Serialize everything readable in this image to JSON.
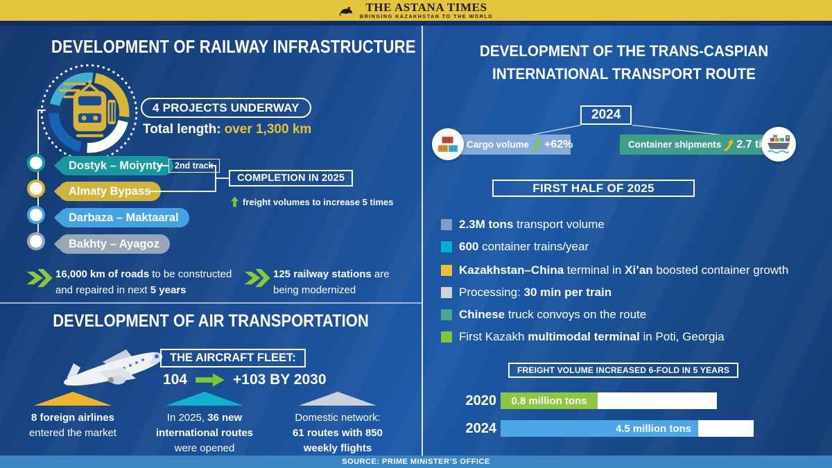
{
  "banner": {
    "title": "THE ASTANA TIMES",
    "tagline": "BRINGING KAZAKHSTAN TO THE WORLD",
    "bg_color": "#e4c33d"
  },
  "source_bar": {
    "text": "SOURCE: PRIME MINISTER’S OFFICE",
    "bg_color": "#3d86c4"
  },
  "railway": {
    "title": "DEVELOPMENT OF RAILWAY INFRASTRUCTURE",
    "badge_label": "4 PROJECTS UNDERWAY",
    "total_length_label": "Total length:",
    "total_length_value": "over 1,300 km",
    "projects": [
      {
        "name": "Dostyk – Moiynty",
        "color": "#17989e",
        "tag": "2nd track"
      },
      {
        "name": "Almaty Bypass",
        "color": "#d2b33c"
      },
      {
        "name": "Darbaza – Maktaaral",
        "color": "#46a3e0"
      },
      {
        "name": "Bakhty – Ayagoz",
        "color": "#98a6b6"
      }
    ],
    "completion_label": "COMPLETION IN 2025",
    "completion_note": "freight volumes to increase 5 times",
    "facts": [
      {
        "parts": [
          {
            "t": "16,000 km of roads",
            "b": true
          },
          {
            "t": " to be constructed and repaired in next ",
            "b": false
          },
          {
            "t": "5 years",
            "b": true
          }
        ]
      },
      {
        "parts": [
          {
            "t": "125 railway stations",
            "b": true
          },
          {
            "t": " are being modernized",
            "b": false
          }
        ]
      }
    ],
    "accent_green": "#8dc63f"
  },
  "air": {
    "title": "DEVELOPMENT OF AIR TRANSPORTATION",
    "fleet_label": "THE AIRCRAFT FLEET:",
    "fleet_current": "104",
    "fleet_future": "+103 BY 2030",
    "stats": [
      {
        "color": "#f0b42c",
        "parts": [
          {
            "t": "8 foreign airlines",
            "b": true
          },
          {
            "t": "\nentered the market",
            "b": false
          }
        ]
      },
      {
        "color": "#12b0d0",
        "parts": [
          {
            "t": "In 2025, ",
            "b": false
          },
          {
            "t": "36 new international routes",
            "b": true
          },
          {
            "t": " were opened",
            "b": false
          }
        ]
      },
      {
        "color": "#ccd2d8",
        "parts": [
          {
            "t": "Domestic network:",
            "b": false
          },
          {
            "t": "\n",
            "b": false
          },
          {
            "t": "61 routes with 850 weekly flights",
            "b": true
          }
        ]
      }
    ]
  },
  "transcaspian": {
    "title_line1": "DEVELOPMENT OF THE TRANS-CASPIAN",
    "title_line2": "INTERNATIONAL TRANSPORT ROUTE",
    "year": "2024",
    "stats": [
      {
        "label": "Cargo volume",
        "value": "+62%",
        "bar_color": "#85abd8",
        "arrow_color": "#7ec832",
        "icon": "containers-icon"
      },
      {
        "label": "Container shipments",
        "value": "2.7 times",
        "bar_color": "#3f9e88",
        "arrow_color": "#f0b42c",
        "icon": "cargo-ship-icon"
      }
    ],
    "half_title": "FIRST HALF OF 2025",
    "bullets": [
      {
        "color": "#7f9fc8",
        "parts": [
          {
            "t": "2.3M tons",
            "b": true
          },
          {
            "t": " transport volume",
            "b": false
          }
        ]
      },
      {
        "color": "#02b2cc",
        "parts": [
          {
            "t": "600",
            "b": true
          },
          {
            "t": " container trains/year",
            "b": false
          }
        ]
      },
      {
        "color": "#f2bc35",
        "parts": [
          {
            "t": "Kazakhstan–China",
            "b": true
          },
          {
            "t": " terminal in ",
            "b": false
          },
          {
            "t": "Xi’an",
            "b": true
          },
          {
            "t": " boosted container growth",
            "b": false
          }
        ]
      },
      {
        "color": "#ced3d7",
        "parts": [
          {
            "t": "Processing: ",
            "b": false
          },
          {
            "t": "30 min per train",
            "b": true
          }
        ]
      },
      {
        "color": "#48a98b",
        "parts": [
          {
            "t": "Chinese",
            "b": true
          },
          {
            "t": " truck convoys on the route",
            "b": false
          }
        ]
      },
      {
        "color": "#7ec83c",
        "parts": [
          {
            "t": "First Kazakh ",
            "b": false
          },
          {
            "t": "multimodal terminal",
            "b": true
          },
          {
            "t": " in Poti, Georgia",
            "b": false
          }
        ]
      }
    ],
    "chart_title": "FREIGHT VOLUME INCREASED 6-FOLD IN 5 YEARS"
  },
  "chart_data": {
    "type": "bar",
    "orientation": "horizontal",
    "title": "FREIGHT VOLUME INCREASED 6-FOLD IN 5 YEARS",
    "categories": [
      "2020",
      "2024"
    ],
    "values": [
      0.8,
      4.5
    ],
    "unit": "million tons",
    "bar_labels": [
      "0.8 million tons",
      "4.5 million tons"
    ],
    "bar_colors": [
      "#8dc63f",
      "#4da6e6"
    ]
  }
}
